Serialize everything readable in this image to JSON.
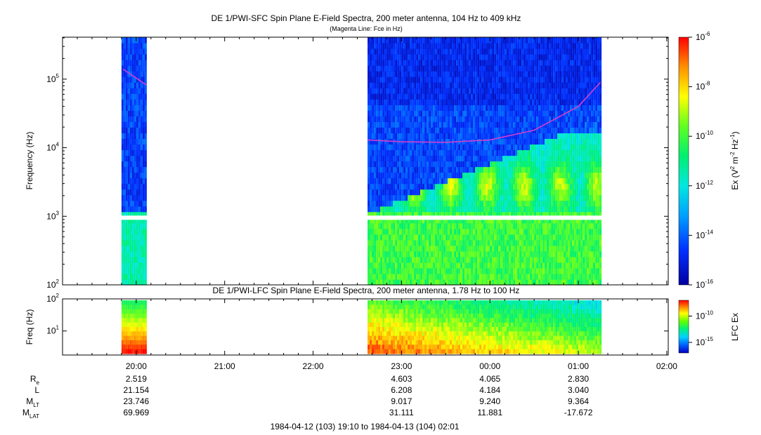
{
  "chart_data": [
    {
      "type": "heatmap",
      "title": "DE 1/PWI-SFC  Spin Plane E-Field Spectra, 200 meter antenna, 104 Hz to 409 kHz",
      "subtitle": "(Magenta Line: Fce in Hz)",
      "ylabel": "Frequency (Hz)",
      "yscale": "log",
      "ylim": [
        100,
        409000
      ],
      "y_ticks": [
        {
          "value": 100,
          "base": "10",
          "exp": "2"
        },
        {
          "value": 1000,
          "base": "10",
          "exp": "3"
        },
        {
          "value": 10000,
          "base": "10",
          "exp": "4"
        },
        {
          "value": 100000,
          "base": "10",
          "exp": "5"
        }
      ],
      "colorbar": {
        "label_prefix": "Ex (V",
        "label_sup1": "2",
        "label_mid": " m",
        "label_sup2": "-2",
        "label_mid2": " Hz",
        "label_sup3": "-1",
        "label_suffix": ")",
        "scale": "log",
        "range": [
          1e-16,
          1e-06
        ],
        "ticks": [
          {
            "value": 1e-06,
            "base": "10",
            "exp": "-6"
          },
          {
            "value": 1e-08,
            "base": "10",
            "exp": "-8"
          },
          {
            "value": 1e-10,
            "base": "10",
            "exp": "-10"
          },
          {
            "value": 1e-12,
            "base": "10",
            "exp": "-12"
          },
          {
            "value": 1e-14,
            "base": "10",
            "exp": "-14"
          },
          {
            "value": 1e-16,
            "base": "10",
            "exp": "-16"
          }
        ]
      },
      "data_intervals": [
        {
          "start": "19:50",
          "end": "20:07"
        },
        {
          "start": "22:37",
          "end": "01:15"
        }
      ],
      "fce_line": [
        {
          "segment": 1,
          "points": [
            [
              "19:51",
              140000
            ],
            [
              "20:07",
              82000
            ]
          ]
        },
        {
          "segment": 2,
          "points": [
            [
              "22:37",
              13000
            ],
            [
              "23:00",
              12200
            ],
            [
              "23:30",
              12000
            ],
            [
              "00:00",
              13000
            ],
            [
              "00:30",
              18000
            ],
            [
              "01:00",
              40000
            ],
            [
              "01:15",
              90000
            ]
          ]
        }
      ],
      "colors": {
        "magenta": "#d040d0",
        "colormap": [
          "#0000a0",
          "#0030ff",
          "#00c0ff",
          "#00f0a0",
          "#40ff40",
          "#ffff00",
          "#ff9000",
          "#ff0000"
        ]
      }
    },
    {
      "type": "heatmap",
      "title": "DE 1/PWI-LFC  Spin Plane E-Field Spectra, 200 meter antenna, 1.78 Hz to 100 Hz",
      "ylabel": "Freq (Hz)",
      "yscale": "log",
      "ylim": [
        1.78,
        100
      ],
      "y_ticks": [
        {
          "value": 10,
          "base": "10",
          "exp": "1"
        },
        {
          "value": 100,
          "base": "10",
          "exp": "2"
        }
      ],
      "colorbar": {
        "label": "LFC Ex",
        "scale": "log",
        "range": [
          1e-17,
          1e-07
        ],
        "ticks": [
          {
            "value": 1e-10,
            "base": "10",
            "exp": "-10"
          },
          {
            "value": 1e-15,
            "base": "10",
            "exp": "-15"
          }
        ]
      },
      "data_intervals": [
        {
          "start": "19:50",
          "end": "20:07"
        },
        {
          "start": "22:37",
          "end": "01:15"
        }
      ]
    }
  ],
  "time_axis": {
    "range": [
      "19:10",
      "02:01"
    ],
    "ticks": [
      "20:00",
      "21:00",
      "22:00",
      "23:00",
      "00:00",
      "01:00",
      "02:00"
    ],
    "footer": "1984-04-12 (103) 19:10 to 1984-04-13 (104) 02:01"
  },
  "ephemeris": {
    "labels": [
      {
        "main": "R",
        "sub": "e"
      },
      {
        "main": "L",
        "sub": ""
      },
      {
        "main": "M",
        "sub": "LT"
      },
      {
        "main": "M",
        "sub": "LAT"
      }
    ],
    "columns": [
      {
        "time": "20:00",
        "values": [
          "2.519",
          "21.154",
          "23.746",
          "69.969"
        ]
      },
      {
        "time": "23:00",
        "values": [
          "4.603",
          "6.208",
          "9.017",
          "31.111"
        ]
      },
      {
        "time": "00:00",
        "values": [
          "4.065",
          "4.184",
          "9.240",
          "11.881"
        ]
      },
      {
        "time": "01:00",
        "values": [
          "2.830",
          "3.040",
          "9.364",
          "-17.672"
        ]
      }
    ]
  }
}
